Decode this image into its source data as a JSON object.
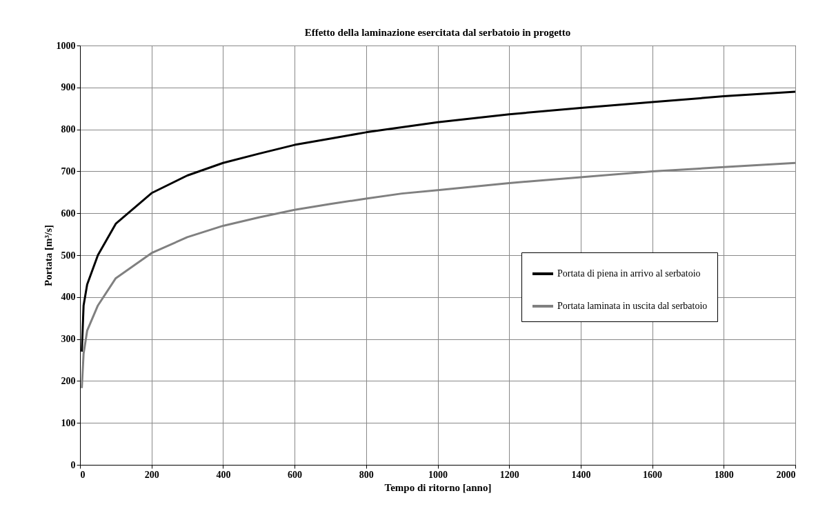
{
  "chart_data": {
    "type": "line",
    "title": "Effetto della laminazione esercitata dal serbatoio in progetto",
    "xlabel": "Tempo di ritorno [anno]",
    "ylabel": "Portata [m³/s]",
    "x": [
      5,
      10,
      20,
      50,
      100,
      200,
      300,
      400,
      500,
      600,
      700,
      800,
      900,
      1000,
      1200,
      1400,
      1600,
      1800,
      2000
    ],
    "series": [
      {
        "name": "Portata di piena in arrivo al serbatoio",
        "color": "#000000",
        "values": [
          270,
          380,
          430,
          500,
          575,
          648,
          690,
          720,
          742,
          763,
          778,
          793,
          805,
          817,
          836,
          851,
          865,
          879,
          890
        ]
      },
      {
        "name": "Portata laminata in uscita dal serbatoio",
        "color": "#808080",
        "values": [
          183,
          265,
          320,
          380,
          445,
          505,
          543,
          570,
          590,
          608,
          622,
          635,
          647,
          655,
          672,
          686,
          700,
          710,
          720
        ]
      }
    ],
    "xlim": [
      0,
      2000
    ],
    "xticks": [
      0,
      200,
      400,
      600,
      800,
      1000,
      1200,
      1400,
      1600,
      1800,
      2000
    ],
    "ylim": [
      0,
      1000
    ],
    "yticks": [
      0,
      100,
      200,
      300,
      400,
      500,
      600,
      700,
      800,
      900,
      1000
    ],
    "grid": true,
    "legend": "right",
    "marker": "none",
    "line_style": "solid"
  }
}
